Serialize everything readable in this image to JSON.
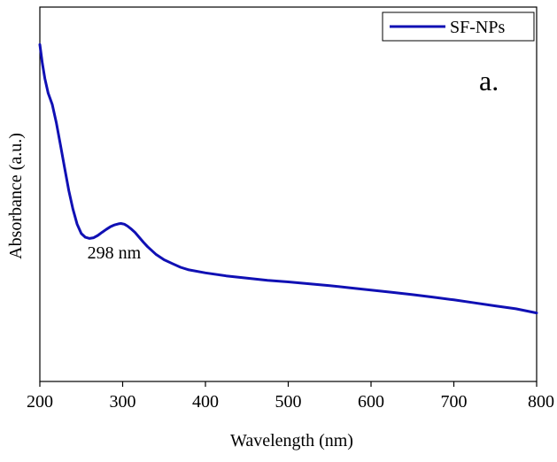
{
  "chart_data": {
    "type": "line",
    "xlabel": "Wavelength (nm)",
    "ylabel": "Absorbance (a.u.)",
    "xlim": [
      200,
      800
    ],
    "xticks": [
      200,
      300,
      400,
      500,
      600,
      700,
      800
    ],
    "y_ticks_labeled": false,
    "grid": false,
    "legend_position": "top-right",
    "color": "#1010b4",
    "series": [
      {
        "name": "SF-NPs",
        "x": [
          200,
          203,
          206,
          210,
          215,
          220,
          225,
          230,
          235,
          240,
          245,
          250,
          255,
          260,
          265,
          270,
          275,
          280,
          285,
          290,
          295,
          298,
          302,
          306,
          310,
          315,
          320,
          325,
          330,
          340,
          350,
          360,
          370,
          380,
          400,
          425,
          450,
          475,
          500,
          525,
          550,
          575,
          600,
          625,
          650,
          675,
          700,
          725,
          750,
          775,
          800
        ],
        "y": [
          0.9,
          0.85,
          0.81,
          0.77,
          0.74,
          0.69,
          0.63,
          0.57,
          0.51,
          0.46,
          0.42,
          0.395,
          0.385,
          0.382,
          0.384,
          0.39,
          0.398,
          0.406,
          0.413,
          0.418,
          0.421,
          0.422,
          0.42,
          0.415,
          0.408,
          0.398,
          0.385,
          0.372,
          0.36,
          0.34,
          0.325,
          0.315,
          0.305,
          0.298,
          0.29,
          0.282,
          0.276,
          0.27,
          0.266,
          0.261,
          0.256,
          0.25,
          0.244,
          0.238,
          0.232,
          0.225,
          0.218,
          0.21,
          0.202,
          0.194,
          0.183
        ]
      }
    ],
    "annotations": [
      {
        "text": "298 nm",
        "x": 298
      },
      {
        "text": "a."
      }
    ]
  }
}
